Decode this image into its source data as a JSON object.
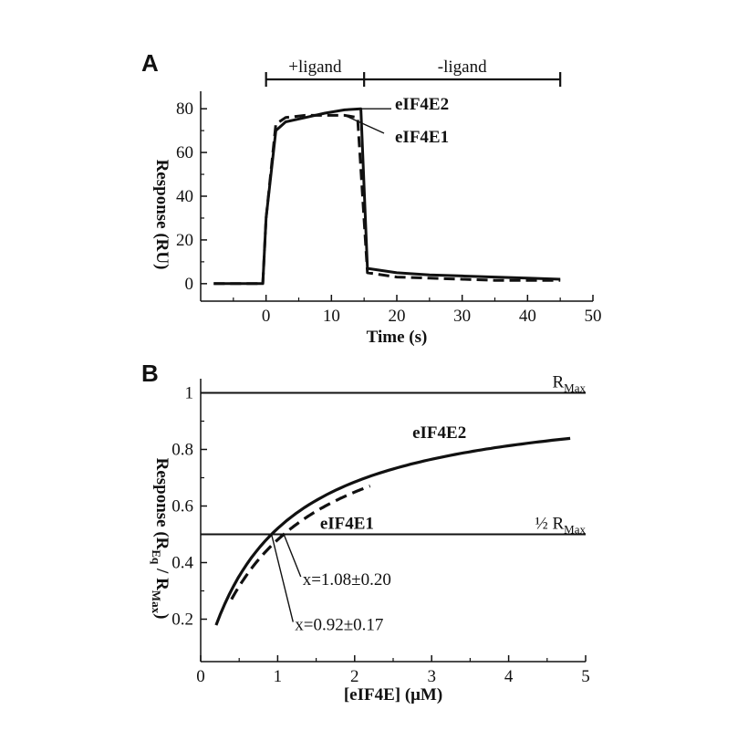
{
  "chart_data": [
    {
      "panel": "A",
      "type": "line",
      "xlabel": "Time (s)",
      "ylabel": "Response (RU)",
      "xlim": [
        -10,
        50
      ],
      "ylim": [
        -8,
        88
      ],
      "xticks": [
        0,
        10,
        20,
        30,
        40,
        50
      ],
      "yticks": [
        0,
        20,
        40,
        60,
        80
      ],
      "phases": [
        {
          "label": "+ligand",
          "start": 0,
          "end": 15
        },
        {
          "label": "-ligand",
          "start": 15,
          "end": 45
        }
      ],
      "series": [
        {
          "name": "eIF4E2",
          "style": "solid",
          "x": [
            -8,
            -0.5,
            0,
            1.5,
            3,
            6,
            9,
            12,
            14.5,
            15.5,
            20,
            25,
            30,
            35,
            40,
            45
          ],
          "y": [
            0,
            0,
            30,
            70,
            74,
            76,
            78,
            79.5,
            80,
            7,
            5,
            4,
            3.5,
            3,
            2.5,
            2
          ]
        },
        {
          "name": "eIF4E1",
          "style": "dashed",
          "x": [
            -8,
            -0.5,
            0,
            1.5,
            3,
            6,
            9,
            12,
            14,
            15.5,
            20,
            25,
            30,
            35,
            40,
            45
          ],
          "y": [
            0,
            0,
            30,
            73,
            76,
            77,
            77,
            77,
            76,
            5,
            3,
            2.5,
            2,
            1.5,
            1.5,
            1.5
          ]
        }
      ],
      "labels": [
        "eIF4E2",
        "eIF4E1"
      ]
    },
    {
      "panel": "B",
      "type": "line",
      "xlabel": "[eIF4E] (μM)",
      "ylabel": "Response (R_Eq / R_Max)",
      "xlim": [
        0,
        5
      ],
      "ylim": [
        0.05,
        1.05
      ],
      "xticks": [
        0,
        1,
        2,
        3,
        4,
        5
      ],
      "yticks": [
        0.2,
        0.4,
        0.6,
        0.8,
        1
      ],
      "ytick_labels": [
        "0.2",
        "0.4",
        "0.6",
        "0.8",
        "1"
      ],
      "reference_lines": [
        {
          "y": 1.0,
          "label": "R",
          "sub": "Max"
        },
        {
          "y": 0.5,
          "label": "½ R",
          "sub": "Max"
        }
      ],
      "series": [
        {
          "name": "eIF4E2",
          "style": "solid",
          "kd": 0.92,
          "range": [
            0.2,
            4.8
          ]
        },
        {
          "name": "eIF4E1",
          "style": "dashed",
          "kd": 1.08,
          "range": [
            0.4,
            2.2
          ]
        }
      ],
      "labels": [
        "eIF4E2",
        "eIF4E1"
      ],
      "annotations": [
        "x=1.08±0.20",
        "x=0.92±0.17"
      ]
    }
  ]
}
